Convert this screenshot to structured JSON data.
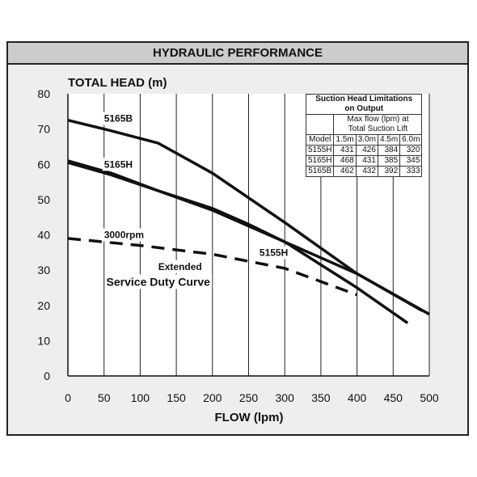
{
  "header": {
    "title": "HYDRAULIC PERFORMANCE"
  },
  "chart_data": {
    "type": "line",
    "title": "HYDRAULIC PERFORMANCE",
    "xlabel": "FLOW (lpm)",
    "ylabel": "TOTAL HEAD (m)",
    "xlim": [
      0,
      500
    ],
    "ylim": [
      0,
      80
    ],
    "x_ticks": [
      "0",
      "50",
      "100",
      "150",
      "200",
      "250",
      "300",
      "350",
      "400",
      "450",
      "500"
    ],
    "y_ticks": [
      "0",
      "10",
      "20",
      "30",
      "40",
      "50",
      "60",
      "70",
      "80"
    ],
    "grid": "vertical",
    "series": [
      {
        "name": "5165B",
        "x": [
          0,
          60,
          125,
          200,
          300,
          400,
          500
        ],
        "y": [
          72.5,
          69.5,
          66,
          57.5,
          43.5,
          29,
          17.5
        ]
      },
      {
        "name": "5165H",
        "x": [
          0,
          60,
          125,
          200,
          300,
          400,
          490
        ],
        "y": [
          61,
          57.5,
          52.5,
          47,
          38,
          29,
          18.5
        ]
      },
      {
        "name": "5155H",
        "x": [
          0,
          60,
          125,
          200,
          250,
          300,
          400,
          470
        ],
        "y": [
          60.5,
          57,
          52.5,
          47.5,
          43,
          38,
          25,
          15
        ]
      },
      {
        "name": "3000rpm",
        "style": "dashed",
        "x": [
          0,
          100,
          200,
          300,
          400
        ],
        "y": [
          39,
          37,
          34.5,
          30.5,
          23
        ]
      }
    ],
    "annotations": [
      {
        "text": "5165B",
        "x": 50,
        "y": 73
      },
      {
        "text": "5165H",
        "x": 50,
        "y": 60
      },
      {
        "text": "3000rpm",
        "x": 50,
        "y": 40
      },
      {
        "text": "5155H",
        "x": 265,
        "y": 35
      },
      {
        "text": "Extended",
        "x": 125,
        "y": 31
      },
      {
        "text": "Service Duty Curve",
        "x": 125,
        "y": 26.5
      }
    ],
    "table": {
      "title_line1": "Suction Head Limitations",
      "title_line2": "on Output",
      "subtitle_line1": "Max flow (lpm) at",
      "subtitle_line2": "Total Suction Lift",
      "columns": [
        "Model",
        "1.5m",
        "3.0m",
        "4.5m",
        "6.0m"
      ],
      "rows": [
        [
          "5155H",
          "431",
          "426",
          "384",
          "320"
        ],
        [
          "5165H",
          "468",
          "431",
          "385",
          "345"
        ],
        [
          "5165B",
          "462",
          "432",
          "392",
          "333"
        ]
      ]
    }
  }
}
